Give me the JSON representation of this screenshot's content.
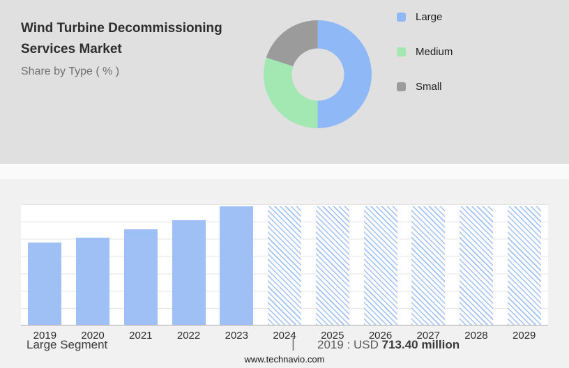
{
  "header": {
    "title_line1": "Wind Turbine Decommissioning",
    "title_line2": "Services Market",
    "subtitle": "Share by Type ( % )"
  },
  "legend": {
    "items": [
      {
        "label": "Large",
        "color": "#8fb8f6"
      },
      {
        "label": "Medium",
        "color": "#a3e7b2"
      },
      {
        "label": "Small",
        "color": "#9b9b9b"
      }
    ]
  },
  "chart_data": [
    {
      "type": "pie",
      "donut": true,
      "title": "Share by Type ( % )",
      "labels": [
        "Large",
        "Medium",
        "Small"
      ],
      "values": [
        50,
        30,
        20
      ],
      "colors": [
        "#8fb8f6",
        "#a3e7b2",
        "#9b9b9b"
      ],
      "legend_position": "right"
    },
    {
      "type": "bar",
      "categories": [
        "2019",
        "2020",
        "2021",
        "2022",
        "2023",
        "2024",
        "2025",
        "2026",
        "2027",
        "2028",
        "2029"
      ],
      "bar_height_pct": [
        68,
        72,
        79,
        87,
        98,
        98,
        98,
        98,
        98,
        98,
        98
      ],
      "bar_styles": [
        "solid",
        "solid",
        "solid",
        "solid",
        "solid",
        "hatched",
        "hatched",
        "hatched",
        "hatched",
        "hatched",
        "hatched"
      ],
      "bar_color": "#9ec0f5",
      "known_values": {
        "2019": "USD 713.40 million"
      },
      "xlabel": "",
      "ylabel": "",
      "gridlines": true
    }
  ],
  "footer": {
    "segment_label": "Large Segment",
    "separator": "|",
    "value_prefix": "2019 : USD ",
    "value_bold": "713.40 million",
    "website": "www.technavio.com"
  }
}
